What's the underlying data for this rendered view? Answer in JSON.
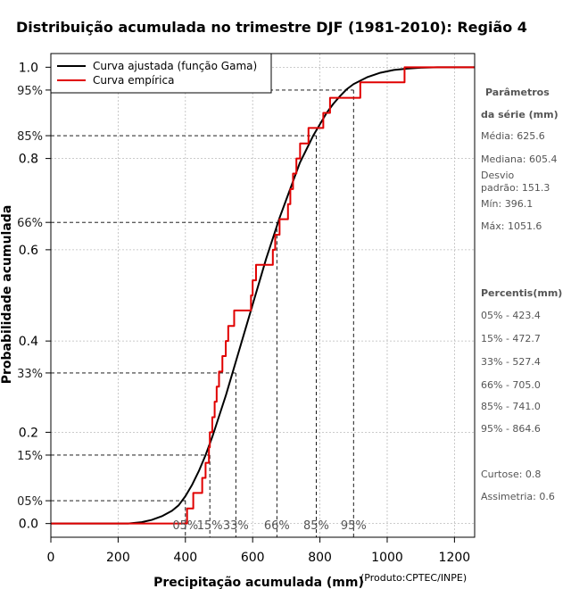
{
  "chart_data": {
    "type": "line",
    "title": "Distribuição acumulada no trimestre DJF (1981-2010): Região 4",
    "xlabel": "Precipitação acumulada (mm)",
    "ylabel": "Probabilidade acumulada",
    "credit": "(Produto:CPTEC/INPE)",
    "xlim": [
      0,
      1260
    ],
    "ylim": [
      -0.03,
      1.03
    ],
    "x_ticks": [
      "0",
      "200",
      "400",
      "600",
      "800",
      "1000",
      "1200"
    ],
    "x_tick_values": [
      0,
      200,
      400,
      600,
      800,
      1000,
      1200
    ],
    "y_ticks": [
      "0.0",
      "0.2",
      "0.4",
      "0.6",
      "0.8",
      "1.0"
    ],
    "y_tick_values": [
      0.0,
      0.2,
      0.4,
      0.6,
      0.8,
      1.0
    ],
    "y_percent_ticks": [
      "05%",
      "15%",
      "33%",
      "66%",
      "85%",
      "95%"
    ],
    "y_percent_values": [
      0.05,
      0.15,
      0.33,
      0.66,
      0.85,
      0.95
    ],
    "grid": true,
    "legend": {
      "position": "top-left",
      "entries": [
        {
          "label": "Curva ajustada (função Gama)",
          "color": "#000000"
        },
        {
          "label": "Curva empírica",
          "color": "#e00000"
        }
      ]
    },
    "series": [
      {
        "name": "Curva ajustada (função Gama)",
        "color": "#000000",
        "x": [
          0,
          230,
          270,
          300,
          330,
          360,
          380,
          400,
          420,
          440,
          460,
          480,
          500,
          520,
          540,
          560,
          580,
          600,
          620,
          640,
          660,
          680,
          700,
          720,
          740,
          760,
          780,
          800,
          820,
          840,
          860,
          880,
          900,
          940,
          980,
          1020,
          1060,
          1100,
          1150,
          1200,
          1260
        ],
        "y": [
          0.0,
          0.0,
          0.003,
          0.008,
          0.016,
          0.028,
          0.04,
          0.06,
          0.085,
          0.115,
          0.15,
          0.19,
          0.235,
          0.28,
          0.33,
          0.38,
          0.43,
          0.48,
          0.53,
          0.58,
          0.625,
          0.67,
          0.71,
          0.75,
          0.79,
          0.82,
          0.85,
          0.875,
          0.9,
          0.92,
          0.937,
          0.952,
          0.963,
          0.978,
          0.988,
          0.994,
          0.997,
          0.999,
          1.0,
          1.0,
          1.0
        ]
      },
      {
        "name": "Curva empírica",
        "color": "#e00000",
        "step": true,
        "x": [
          0,
          396.1,
          396.1,
          405,
          423.4,
          450,
          460,
          470,
          472.7,
          480,
          487,
          493,
          500,
          510,
          520,
          527.4,
          545,
          595,
          600,
          610,
          660,
          667,
          680,
          705,
          712,
          720,
          730,
          741,
          766,
          810,
          830,
          920,
          1051.6,
          1260
        ],
        "y": [
          0.0,
          0.0,
          0.0,
          0.033,
          0.067,
          0.1,
          0.133,
          0.167,
          0.2,
          0.233,
          0.267,
          0.3,
          0.333,
          0.367,
          0.4,
          0.433,
          0.467,
          0.5,
          0.533,
          0.567,
          0.6,
          0.633,
          0.667,
          0.7,
          0.733,
          0.767,
          0.8,
          0.833,
          0.867,
          0.9,
          0.933,
          0.967,
          1.0,
          1.0
        ]
      }
    ],
    "percentile_markers": [
      {
        "label": "05%",
        "p": 0.05,
        "x": 400
      },
      {
        "label": "15%",
        "p": 0.15,
        "x": 472.7
      },
      {
        "label": "33%",
        "p": 0.33,
        "x": 550
      },
      {
        "label": "66%",
        "p": 0.66,
        "x": 672
      },
      {
        "label": "85%",
        "p": 0.85,
        "x": 789
      },
      {
        "label": "95%",
        "p": 0.95,
        "x": 900
      }
    ],
    "side_panel": {
      "params_title_1": "Parâmetros",
      "params_title_2": "da série (mm)",
      "media": "Média: 625.6",
      "mediana": "Mediana: 605.4",
      "desvio_1": "Desvio",
      "desvio_2": "padrão: 151.3",
      "min": "Mín: 396.1",
      "max": "Máx: 1051.6",
      "percentis_title": "Percentis(mm)",
      "p05": "05% - 423.4",
      "p15": "15% - 472.7",
      "p33": "33% - 527.4",
      "p66": "66% - 705.0",
      "p85": "85% - 741.0",
      "p95": "95% - 864.6",
      "curtose": "Curtose: 0.8",
      "assimetria": "Assimetria: 0.6"
    }
  }
}
